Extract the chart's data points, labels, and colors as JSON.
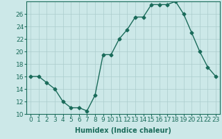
{
  "x": [
    0,
    1,
    2,
    3,
    4,
    5,
    6,
    7,
    8,
    9,
    10,
    11,
    12,
    13,
    14,
    15,
    16,
    17,
    18,
    19,
    20,
    21,
    22,
    23
  ],
  "y": [
    16,
    16,
    15,
    14,
    12,
    11,
    11,
    10.5,
    13,
    19.5,
    19.5,
    22,
    23.5,
    25.5,
    25.5,
    27.5,
    27.5,
    27.5,
    28,
    26,
    23,
    20,
    17.5,
    16
  ],
  "xlabel": "Humidex (Indice chaleur)",
  "ylabel": "",
  "xlim": [
    -0.5,
    23.5
  ],
  "ylim": [
    10,
    28
  ],
  "yticks": [
    10,
    12,
    14,
    16,
    18,
    20,
    22,
    24,
    26
  ],
  "xticks": [
    0,
    1,
    2,
    3,
    4,
    5,
    6,
    7,
    8,
    9,
    10,
    11,
    12,
    13,
    14,
    15,
    16,
    17,
    18,
    19,
    20,
    21,
    22,
    23
  ],
  "line_color": "#1a6b5a",
  "marker": "D",
  "marker_size": 2.5,
  "bg_color": "#cce8e8",
  "grid_color": "#aacccc",
  "label_fontsize": 7,
  "tick_fontsize": 6.5
}
